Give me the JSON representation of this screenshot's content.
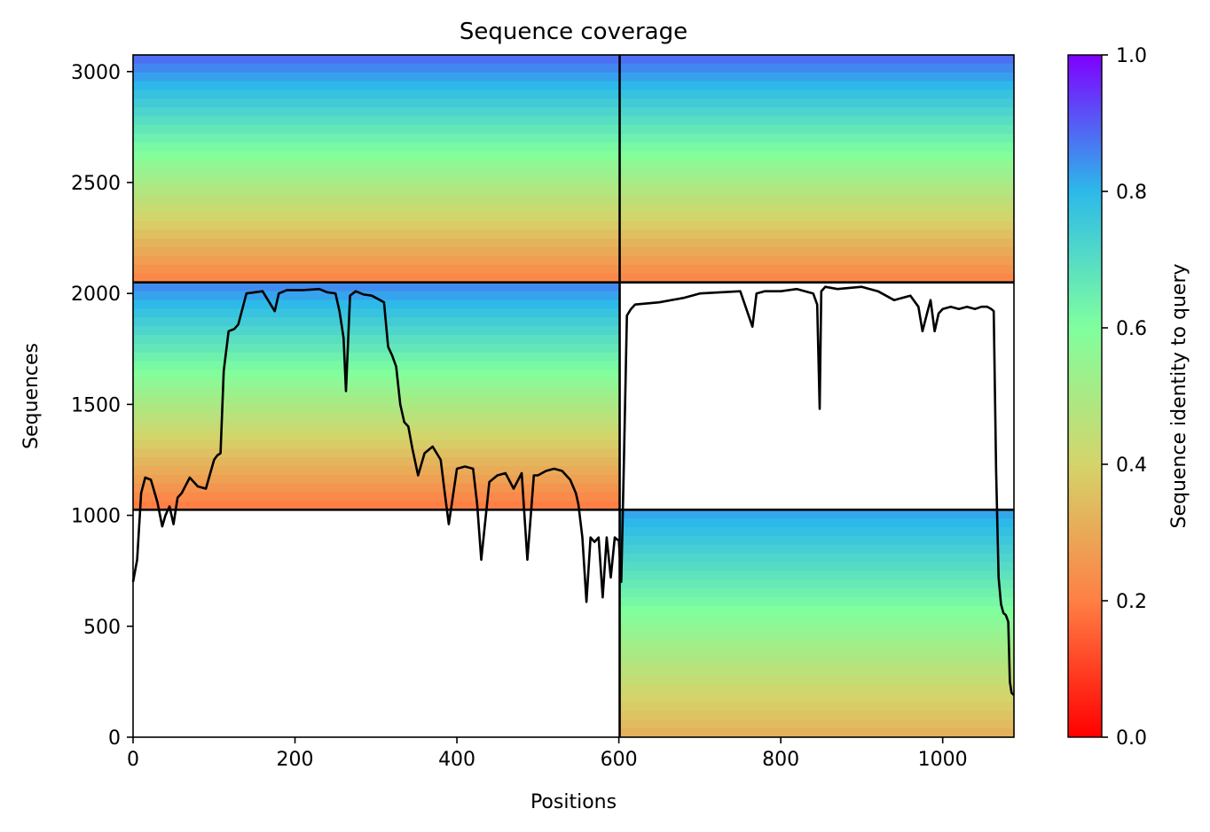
{
  "chart_data": {
    "type": "heatmap",
    "title": "Sequence coverage",
    "xlabel": "Positions",
    "ylabel": "Sequences",
    "xlim": [
      0,
      1088
    ],
    "ylim": [
      0,
      3075
    ],
    "xticks": [
      "0",
      "200",
      "400",
      "600",
      "800",
      "1000"
    ],
    "xtick_values": [
      0,
      200,
      400,
      600,
      800,
      1000
    ],
    "yticks": [
      "0",
      "500",
      "1000",
      "1500",
      "2000",
      "2500",
      "3000"
    ],
    "ytick_values": [
      0,
      500,
      1000,
      1500,
      2000,
      2500,
      3000
    ],
    "colorbar": {
      "label": "Sequence identity to query",
      "colormap": "rainbow_r",
      "range": [
        0,
        1
      ],
      "ticks": [
        "0.0",
        "0.2",
        "0.4",
        "0.6",
        "0.8",
        "1.0"
      ],
      "tick_values": [
        0,
        0.2,
        0.4,
        0.6,
        0.8,
        1.0
      ],
      "colors": [
        "#ff0000",
        "#ff7f45",
        "#d4d46a",
        "#80ff9e",
        "#2cb9ea",
        "#7f00ff"
      ]
    },
    "chain_boundaries_x": [
      601
    ],
    "block_boundaries_y": [
      1025,
      2050
    ],
    "blocks": [
      {
        "name": "block-top-left",
        "x": [
          0,
          601
        ],
        "y": [
          2050,
          3075
        ],
        "identity_top": 0.88,
        "identity_bottom": 0.22
      },
      {
        "name": "block-top-right",
        "x": [
          601,
          1088
        ],
        "y": [
          2050,
          3075
        ],
        "identity_top": 0.88,
        "identity_bottom": 0.22
      },
      {
        "name": "block-middle-left",
        "x": [
          0,
          601
        ],
        "y": [
          1025,
          2050
        ],
        "identity_top": 0.85,
        "identity_bottom": 0.2
      },
      {
        "name": "block-bottom-right",
        "x": [
          601,
          1088
        ],
        "y": [
          0,
          1025
        ],
        "identity_top": 0.82,
        "identity_bottom": 0.32
      }
    ],
    "coverage_line": {
      "color": "#000000",
      "x": [
        0,
        5,
        10,
        15,
        22,
        30,
        36,
        40,
        45,
        50,
        55,
        60,
        70,
        80,
        90,
        100,
        104,
        108,
        112,
        118,
        125,
        130,
        140,
        160,
        175,
        180,
        190,
        210,
        230,
        240,
        250,
        255,
        260,
        263,
        268,
        275,
        285,
        295,
        300,
        310,
        315,
        320,
        325,
        330,
        335,
        340,
        345,
        352,
        360,
        370,
        380,
        385,
        390,
        400,
        410,
        420,
        425,
        430,
        440,
        450,
        460,
        470,
        480,
        487,
        495,
        500,
        510,
        520,
        530,
        540,
        547,
        550,
        555,
        560,
        565,
        570,
        575,
        580,
        585,
        590,
        595,
        598,
        600,
        603,
        606,
        610,
        615,
        620,
        650,
        680,
        700,
        750,
        765,
        770,
        780,
        800,
        820,
        840,
        845,
        848,
        850,
        855,
        870,
        900,
        920,
        940,
        960,
        970,
        975,
        980,
        985,
        990,
        995,
        1000,
        1010,
        1020,
        1030,
        1040,
        1048,
        1055,
        1060,
        1063,
        1066,
        1069,
        1072,
        1075,
        1078,
        1081,
        1083,
        1085,
        1088
      ],
      "y": [
        700,
        800,
        1100,
        1170,
        1160,
        1060,
        950,
        1000,
        1040,
        960,
        1080,
        1100,
        1170,
        1130,
        1120,
        1250,
        1270,
        1280,
        1650,
        1830,
        1840,
        1860,
        2000,
        2010,
        1920,
        2000,
        2015,
        2015,
        2020,
        2005,
        2000,
        1920,
        1800,
        1560,
        1990,
        2010,
        1995,
        1990,
        1980,
        1960,
        1760,
        1720,
        1670,
        1500,
        1420,
        1400,
        1300,
        1180,
        1280,
        1310,
        1250,
        1100,
        960,
        1210,
        1220,
        1210,
        1050,
        800,
        1150,
        1180,
        1190,
        1120,
        1190,
        800,
        1180,
        1180,
        1200,
        1210,
        1200,
        1160,
        1100,
        1050,
        900,
        610,
        900,
        880,
        900,
        630,
        900,
        720,
        900,
        890,
        890,
        700,
        1200,
        1900,
        1930,
        1950,
        1960,
        1980,
        2000,
        2010,
        1850,
        2000,
        2010,
        2010,
        2020,
        2000,
        1950,
        1480,
        2010,
        2030,
        2020,
        2030,
        2010,
        1970,
        1990,
        1940,
        1830,
        1900,
        1970,
        1830,
        1910,
        1930,
        1940,
        1930,
        1940,
        1930,
        1940,
        1940,
        1930,
        1920,
        1200,
        720,
        600,
        560,
        550,
        520,
        250,
        200,
        190
      ]
    }
  }
}
